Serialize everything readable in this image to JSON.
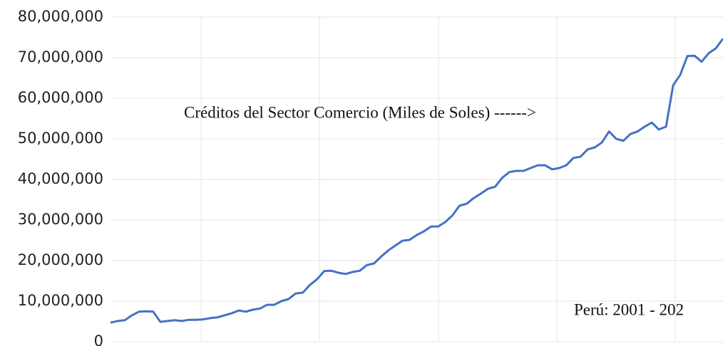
{
  "chart_data": {
    "type": "line",
    "annotations": [
      "Créditos del Sector Comercio (Miles de Soles) ------>",
      "Perú: 2001 - 202"
    ],
    "series": [
      {
        "color": "#4472c4",
        "values": [
          4700000,
          5100000,
          5300000,
          6500000,
          7400000,
          7500000,
          7400000,
          4900000,
          5100000,
          5300000,
          5100000,
          5400000,
          5400000,
          5500000,
          5800000,
          6000000,
          6500000,
          7000000,
          7700000,
          7400000,
          7900000,
          8200000,
          9100000,
          9100000,
          10000000,
          10500000,
          11900000,
          12100000,
          14000000,
          15400000,
          17400000,
          17500000,
          17000000,
          16700000,
          17200000,
          17500000,
          18900000,
          19300000,
          21000000,
          22500000,
          23700000,
          24900000,
          25100000,
          26300000,
          27200000,
          28400000,
          28400000,
          29500000,
          31100000,
          33500000,
          34000000,
          35400000,
          36500000,
          37700000,
          38200000,
          40400000,
          41800000,
          42100000,
          42100000,
          42800000,
          43500000,
          43500000,
          42500000,
          42800000,
          43500000,
          45300000,
          45600000,
          47400000,
          47900000,
          49100000,
          51800000,
          50000000,
          49500000,
          51200000,
          51800000,
          53000000,
          54000000,
          52300000,
          53000000,
          63200000,
          65800000,
          70400000,
          70500000,
          69000000,
          71100000,
          72300000,
          74700000
        ]
      }
    ],
    "ylim": [
      0,
      80000000
    ],
    "yticks": [
      {
        "value": 0,
        "label": "0"
      },
      {
        "value": 10000000,
        "label": "10,000,000"
      },
      {
        "value": 20000000,
        "label": "20,000,000"
      },
      {
        "value": 30000000,
        "label": "30,000,000"
      },
      {
        "value": 40000000,
        "label": "40,000,000"
      },
      {
        "value": 50000000,
        "label": "50,000,000"
      },
      {
        "value": 60000000,
        "label": "60,000,000"
      },
      {
        "value": 70000000,
        "label": "70,000,000"
      },
      {
        "value": 80000000,
        "label": "80,000,000"
      }
    ],
    "grid": true
  }
}
